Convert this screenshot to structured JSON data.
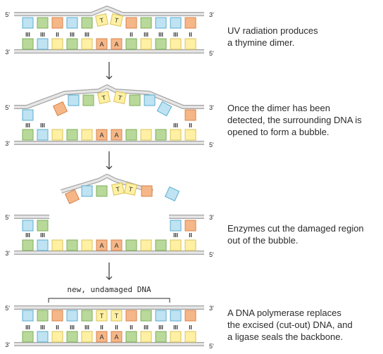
{
  "steps": [
    {
      "caption_lines": [
        "UV radiation produces",
        "a thymine dimer."
      ]
    },
    {
      "caption_lines": [
        "Once the dimer has been",
        "detected, the surrounding DNA is",
        "opened to form a bubble."
      ]
    },
    {
      "caption_lines": [
        "Enzymes cut the damaged region",
        "out of the bubble."
      ]
    },
    {
      "caption_lines": [
        "A DNA polymerase replaces",
        "the excised (cut-out) DNA, and",
        "a ligase seals the backbone."
      ]
    }
  ],
  "labels": {
    "five_prime": "5'",
    "three_prime": "3'",
    "thymine": "T",
    "adenine": "A",
    "new_dna_note": "new, undamaged DNA"
  },
  "colors": {
    "backbone": "#e6e6e6",
    "backbone_stroke": "#a3a3a3",
    "blue": "#bfe3f2",
    "blue_stroke": "#5aaed0",
    "green": "#b9d99a",
    "green_stroke": "#7dae5a",
    "orange": "#f5b788",
    "orange_stroke": "#d9834a",
    "yellow": "#fff0a3",
    "yellow_stroke": "#d9c35a",
    "text": "#2b2b2b",
    "arrow": "#333333"
  },
  "strand_sequence": {
    "top": [
      "blue",
      "green",
      "orange",
      "blue",
      "green",
      "yellow",
      "yellow",
      "orange",
      "green",
      "blue",
      "blue",
      "orange"
    ],
    "bottom": [
      "green",
      "blue",
      "yellow",
      "green",
      "yellow",
      "orange",
      "orange",
      "green",
      "yellow",
      "green",
      "yellow",
      "yellow"
    ],
    "bonds": [
      "III",
      "III",
      "II",
      "III",
      "III",
      "",
      "",
      "II",
      "III",
      "III",
      "III",
      "II"
    ],
    "bottom_letters": [
      "",
      "",
      "",
      "",
      "",
      "A",
      "A",
      "",
      "",
      "",
      "",
      ""
    ]
  }
}
